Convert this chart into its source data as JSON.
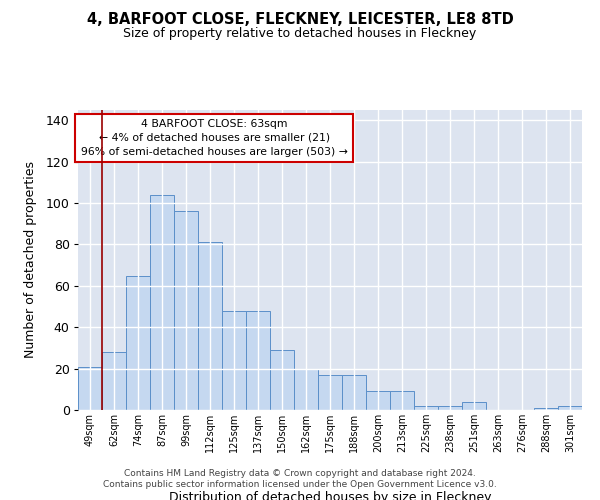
{
  "title_line1": "4, BARFOOT CLOSE, FLECKNEY, LEICESTER, LE8 8TD",
  "title_line2": "Size of property relative to detached houses in Fleckney",
  "xlabel": "Distribution of detached houses by size in Fleckney",
  "ylabel": "Number of detached properties",
  "categories": [
    "49sqm",
    "62sqm",
    "74sqm",
    "87sqm",
    "99sqm",
    "112sqm",
    "125sqm",
    "137sqm",
    "150sqm",
    "162sqm",
    "175sqm",
    "188sqm",
    "200sqm",
    "213sqm",
    "225sqm",
    "238sqm",
    "251sqm",
    "263sqm",
    "276sqm",
    "288sqm",
    "301sqm"
  ],
  "values": [
    21,
    28,
    65,
    104,
    96,
    81,
    48,
    48,
    29,
    20,
    17,
    17,
    9,
    9,
    2,
    2,
    4,
    0,
    0,
    1,
    2
  ],
  "bar_color": "#c5d8f0",
  "bar_edge_color": "#5b8fc9",
  "background_color": "#dde4f0",
  "grid_color": "#ffffff",
  "fig_bg_color": "#ffffff",
  "vline_color": "#990000",
  "vline_x_index": 1,
  "annotation_text": "4 BARFOOT CLOSE: 63sqm\n← 4% of detached houses are smaller (21)\n96% of semi-detached houses are larger (503) →",
  "annotation_box_facecolor": "#ffffff",
  "annotation_box_edgecolor": "#cc0000",
  "ylim": [
    0,
    145
  ],
  "yticks": [
    0,
    20,
    40,
    60,
    80,
    100,
    120,
    140
  ],
  "footer_line1": "Contains HM Land Registry data © Crown copyright and database right 2024.",
  "footer_line2": "Contains public sector information licensed under the Open Government Licence v3.0."
}
